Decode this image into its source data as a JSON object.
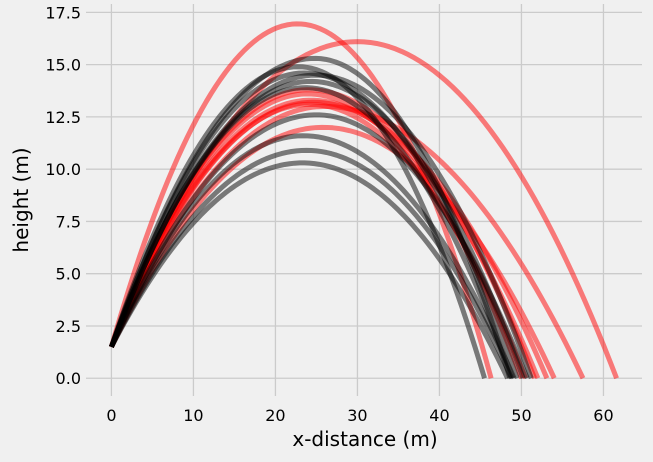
{
  "chart_data": {
    "type": "line",
    "title": "",
    "xlabel": "x-distance (m)",
    "ylabel": "height (m)",
    "xlim": [
      -3.1,
      64.7
    ],
    "ylim": [
      -0.85,
      17.9
    ],
    "xticks": [
      0,
      10,
      20,
      30,
      40,
      50,
      60
    ],
    "yticks": [
      0.0,
      2.5,
      5.0,
      7.5,
      10.0,
      12.5,
      15.0,
      17.5
    ],
    "xtick_labels": [
      "0",
      "10",
      "20",
      "30",
      "40",
      "50",
      "60"
    ],
    "ytick_labels": [
      "0.0",
      "2.5",
      "5.0",
      "7.5",
      "10.0",
      "12.5",
      "15.0",
      "17.5"
    ],
    "grid": true,
    "colors": {
      "red": "#ff0000",
      "black": "#000000",
      "background": "#f0f0f0",
      "grid": "#cbcbcb"
    },
    "series": [
      {
        "color": "red",
        "x": [
          0,
          22.7,
          46.3
        ],
        "y": [
          1.5,
          16.95,
          0
        ]
      },
      {
        "color": "red",
        "x": [
          0,
          30.0,
          61.6
        ],
        "y": [
          1.5,
          16.1,
          0
        ]
      },
      {
        "color": "red",
        "x": [
          0,
          26.0,
          57.5
        ],
        "y": [
          1.5,
          13.0,
          0
        ]
      },
      {
        "color": "red",
        "x": [
          0,
          25.8,
          54.0
        ],
        "y": [
          1.5,
          12.0,
          0
        ]
      },
      {
        "color": "red",
        "x": [
          0,
          24.6,
          53.1
        ],
        "y": [
          1.5,
          13.2,
          0
        ]
      },
      {
        "color": "red",
        "x": [
          0,
          24.3,
          52.0
        ],
        "y": [
          1.5,
          13.3,
          0
        ]
      },
      {
        "color": "red",
        "x": [
          0,
          24.0,
          51.6
        ],
        "y": [
          1.5,
          13.8,
          0
        ]
      },
      {
        "color": "red",
        "x": [
          0,
          24.1,
          50.5
        ],
        "y": [
          1.5,
          13.1,
          0
        ]
      },
      {
        "color": "red",
        "x": [
          0,
          23.9,
          50.0
        ],
        "y": [
          1.5,
          13.6,
          0
        ]
      },
      {
        "color": "black",
        "x": [
          0,
          22.8,
          45.5
        ],
        "y": [
          1.5,
          14.9,
          0
        ]
      },
      {
        "color": "black",
        "x": [
          0,
          24.8,
          48.6
        ],
        "y": [
          1.5,
          15.3,
          0
        ]
      },
      {
        "color": "black",
        "x": [
          0,
          23.3,
          48.3
        ],
        "y": [
          1.5,
          10.3,
          0
        ]
      },
      {
        "color": "black",
        "x": [
          0,
          23.8,
          48.8
        ],
        "y": [
          1.5,
          10.9,
          0
        ]
      },
      {
        "color": "black",
        "x": [
          0,
          23.4,
          49.1
        ],
        "y": [
          1.5,
          11.6,
          0
        ]
      },
      {
        "color": "black",
        "x": [
          0,
          23.5,
          49.5
        ],
        "y": [
          1.5,
          14.6,
          0
        ]
      },
      {
        "color": "black",
        "x": [
          0,
          24.3,
          50.2
        ],
        "y": [
          1.5,
          14.2,
          0
        ]
      },
      {
        "color": "black",
        "x": [
          0,
          24.9,
          51.2
        ],
        "y": [
          1.5,
          14.5,
          0
        ]
      },
      {
        "color": "black",
        "x": [
          0,
          23.6,
          48.9
        ],
        "y": [
          1.5,
          13.9,
          0
        ]
      },
      {
        "color": "black",
        "x": [
          0,
          25.0,
          50.7
        ],
        "y": [
          1.5,
          12.6,
          0
        ]
      }
    ]
  }
}
